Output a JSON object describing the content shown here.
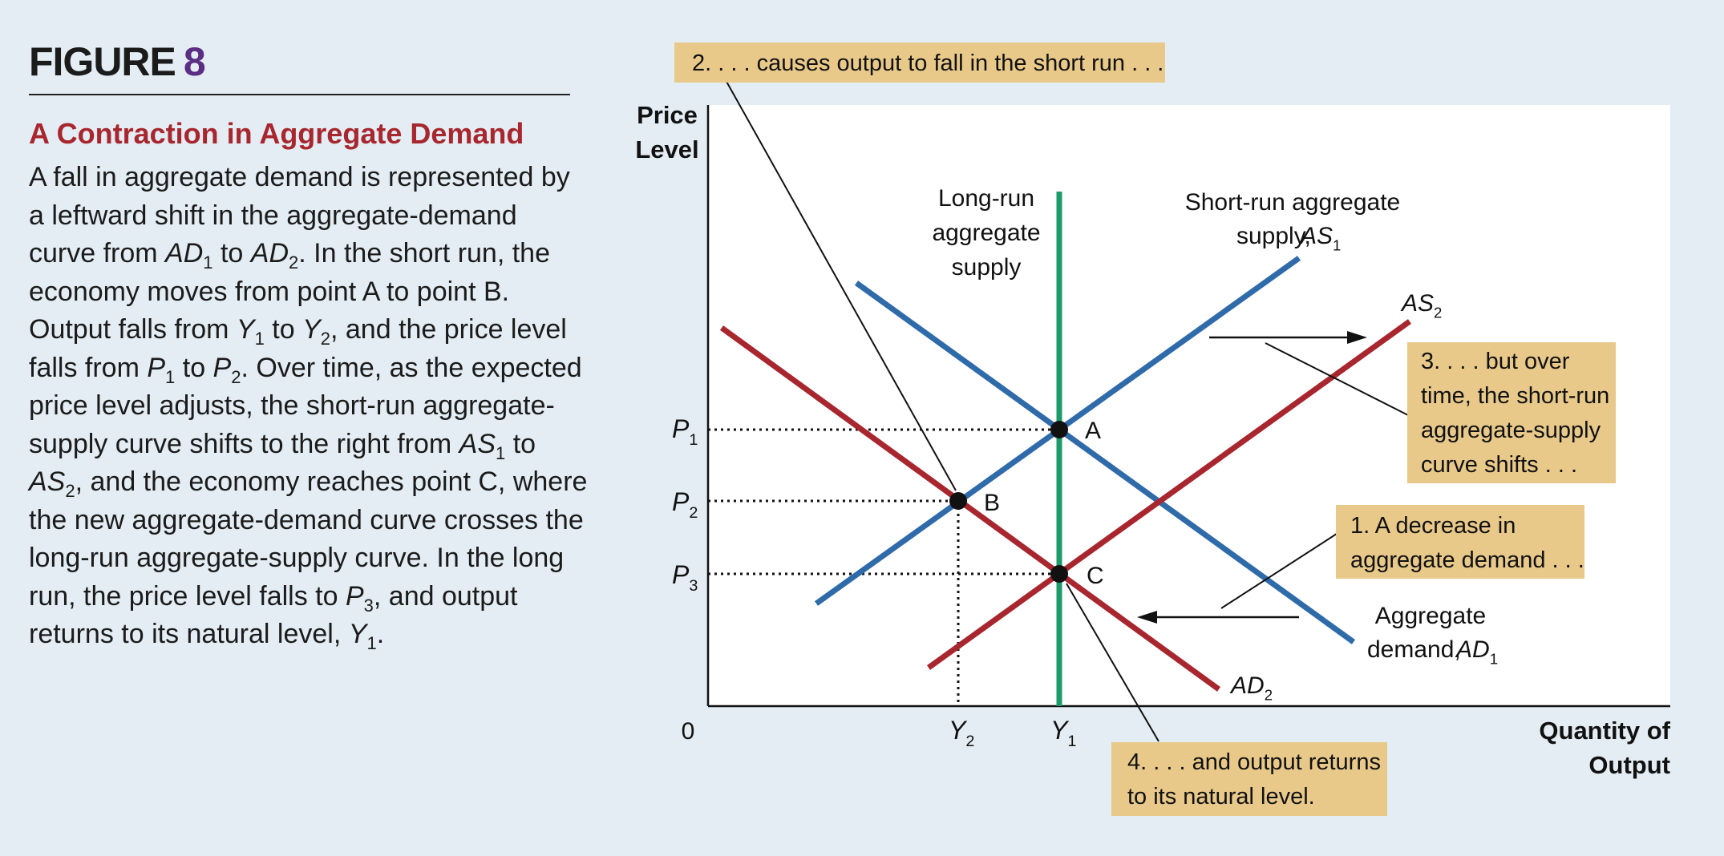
{
  "figure": {
    "label": "FIGURE",
    "number": "8",
    "title": "A Contraction in Aggregate Demand",
    "caption_parts": [
      {
        "t": "A fall in aggregate demand is represented by a leftward shift in the aggregate-demand curve from "
      },
      {
        "t": "AD",
        "i": true
      },
      {
        "t": "1",
        "sub": true
      },
      {
        "t": " to "
      },
      {
        "t": "AD",
        "i": true
      },
      {
        "t": "2",
        "sub": true
      },
      {
        "t": ". In the short run, the economy moves from point A to point B. Output falls from "
      },
      {
        "t": "Y",
        "i": true
      },
      {
        "t": "1",
        "sub": true
      },
      {
        "t": " to "
      },
      {
        "t": "Y",
        "i": true
      },
      {
        "t": "2",
        "sub": true
      },
      {
        "t": ", and the price level falls from "
      },
      {
        "t": "P",
        "i": true
      },
      {
        "t": "1",
        "sub": true
      },
      {
        "t": " to "
      },
      {
        "t": "P",
        "i": true
      },
      {
        "t": "2",
        "sub": true
      },
      {
        "t": ". Over time, as the expected price level adjusts, the short-run aggregate-supply curve shifts to the right from "
      },
      {
        "t": "AS",
        "i": true
      },
      {
        "t": "1",
        "sub": true
      },
      {
        "t": " to "
      },
      {
        "t": "AS",
        "i": true
      },
      {
        "t": "2",
        "sub": true
      },
      {
        "t": ", and the economy reaches point C, where the new aggregate-demand curve crosses the long-run aggregate-supply curve. In the long run, the price level falls to "
      },
      {
        "t": "P",
        "i": true
      },
      {
        "t": "3",
        "sub": true
      },
      {
        "t": ", and output returns to its natural level, "
      },
      {
        "t": "Y",
        "i": true
      },
      {
        "t": "1",
        "sub": true
      },
      {
        "t": "."
      }
    ]
  },
  "axes": {
    "y_label_lines": [
      "Price",
      "Level"
    ],
    "x_label_lines": [
      "Quantity of",
      "Output"
    ],
    "origin": "0",
    "y_ticks": [
      {
        "base": "P",
        "sub": "1"
      },
      {
        "base": "P",
        "sub": "2"
      },
      {
        "base": "P",
        "sub": "3"
      }
    ],
    "x_ticks": [
      {
        "base": "Y",
        "sub": "2"
      },
      {
        "base": "Y",
        "sub": "1"
      }
    ]
  },
  "curves": {
    "lras_label_lines": [
      "Long-run",
      "aggregate",
      "supply"
    ],
    "sras_label_lines": [
      "Short-run aggregate",
      "supply, "
    ],
    "sras1_symbol": {
      "base": "AS",
      "sub": "1"
    },
    "sras2_symbol": {
      "base": "AS",
      "sub": "2"
    },
    "ad1_label_lines": [
      "Aggregate",
      "demand, "
    ],
    "ad1_symbol": {
      "base": "AD",
      "sub": "1"
    },
    "ad2_symbol": {
      "base": "AD",
      "sub": "2"
    }
  },
  "points": {
    "a": "A",
    "b": "B",
    "c": "C"
  },
  "callouts": {
    "step2": [
      "2. . . . causes output to fall in the short run . . ."
    ],
    "step3": [
      "3. . . . but over",
      "time, the short-run",
      "aggregate-supply",
      "curve shifts . . ."
    ],
    "step1": [
      "1. A decrease in",
      "aggregate demand . . ."
    ],
    "step4": [
      "4. . . . and output returns",
      "to its natural level."
    ]
  },
  "colors": {
    "ad_red": "#a8262e",
    "as_blue": "#2f6aa9",
    "lras_green": "#1d9a6c",
    "callout_bg": "#e8c98a",
    "heading_purple": "#5b2d83",
    "title_red": "#a8262e",
    "page_bg": "#e3edf3"
  }
}
